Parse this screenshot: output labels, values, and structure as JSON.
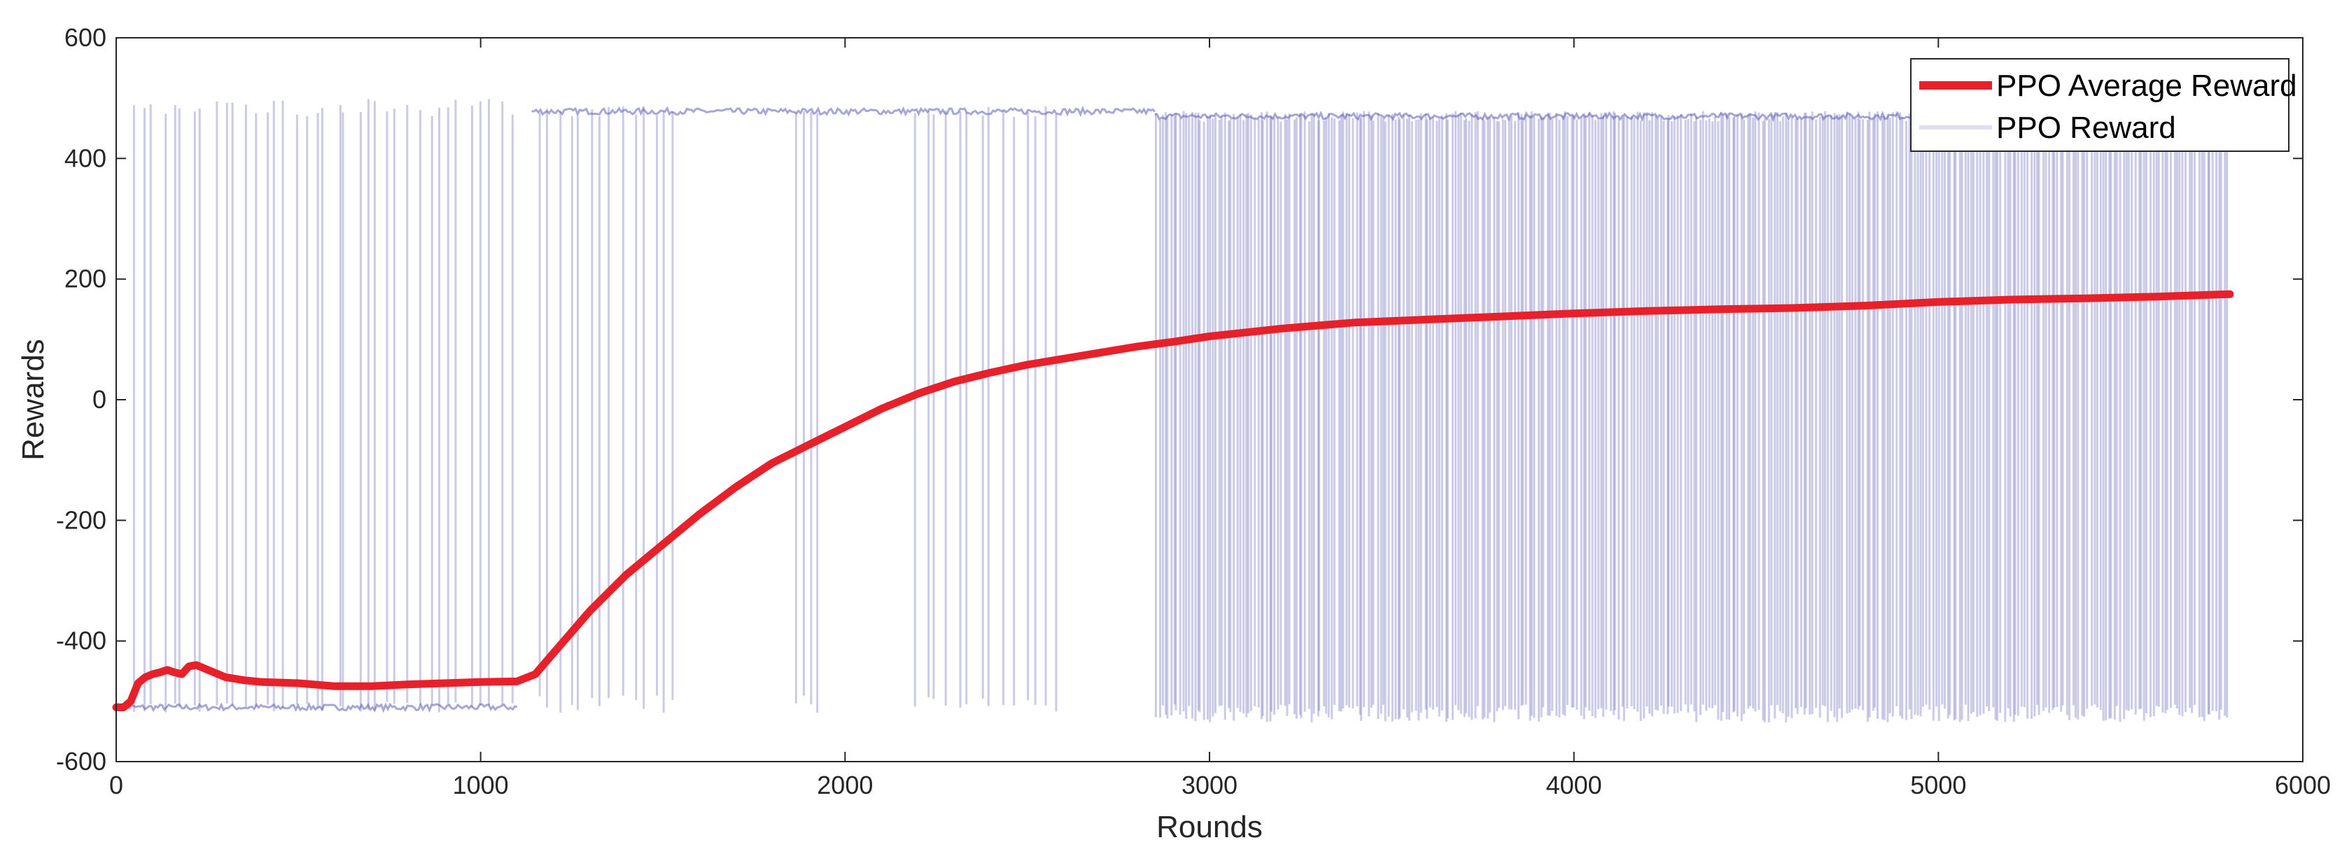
{
  "chart_data": {
    "type": "line",
    "title": "",
    "xlabel": "Rounds",
    "ylabel": "Rewards",
    "xlim": [
      0,
      6000
    ],
    "ylim": [
      -600,
      600
    ],
    "x_ticks": [
      0,
      1000,
      2000,
      3000,
      4000,
      5000,
      6000
    ],
    "y_ticks": [
      -600,
      -400,
      -200,
      0,
      200,
      400,
      600
    ],
    "x_tick_labels": [
      "0",
      "1000",
      "2000",
      "3000",
      "4000",
      "5000",
      "6000"
    ],
    "y_tick_labels": [
      "-600",
      "-400",
      "-200",
      "0",
      "200",
      "400",
      "600"
    ],
    "grid": false,
    "legend_position": "top-right",
    "legend": [
      "PPO Average Reward",
      "PPO Reward"
    ],
    "series": [
      {
        "name": "PPO Average Reward",
        "color": "#e8202a",
        "x": [
          0,
          20,
          40,
          60,
          80,
          100,
          120,
          140,
          160,
          180,
          200,
          220,
          260,
          300,
          350,
          400,
          500,
          600,
          700,
          800,
          900,
          1000,
          1100,
          1150,
          1200,
          1300,
          1400,
          1500,
          1600,
          1700,
          1800,
          1900,
          2000,
          2100,
          2200,
          2300,
          2400,
          2500,
          2600,
          2700,
          2800,
          2900,
          3000,
          3200,
          3400,
          3600,
          3800,
          4000,
          4200,
          4400,
          4600,
          4800,
          5000,
          5200,
          5400,
          5600,
          5800
        ],
        "y": [
          -510,
          -510,
          -500,
          -470,
          -460,
          -455,
          -452,
          -448,
          -452,
          -455,
          -442,
          -440,
          -450,
          -460,
          -465,
          -468,
          -470,
          -475,
          -475,
          -472,
          -470,
          -468,
          -467,
          -455,
          -420,
          -350,
          -290,
          -240,
          -190,
          -145,
          -105,
          -75,
          -45,
          -15,
          10,
          30,
          45,
          58,
          68,
          78,
          88,
          96,
          105,
          118,
          128,
          133,
          138,
          143,
          147,
          150,
          152,
          156,
          162,
          166,
          168,
          171,
          175
        ]
      },
      {
        "name": "PPO Reward",
        "color": "#5c5eb4",
        "base_segments": [
          {
            "x_start": 0,
            "x_end": 1100,
            "y": -510
          },
          {
            "x_start": 1140,
            "x_end": 2850,
            "y": 478
          },
          {
            "x_start": 2850,
            "x_end": 5800,
            "y": 470
          }
        ],
        "spike_ranges": [
          {
            "x_start": 30,
            "x_end": 1100,
            "from": -510,
            "to": 485,
            "count": 38
          },
          {
            "x_start": 1150,
            "x_end": 1550,
            "from": 478,
            "to": -505,
            "count": 14
          },
          {
            "x_start": 1850,
            "x_end": 1940,
            "from": 478,
            "to": -505,
            "count": 4
          },
          {
            "x_start": 2180,
            "x_end": 2600,
            "from": 478,
            "to": -505,
            "count": 14
          },
          {
            "x_start": 2850,
            "x_end": 5800,
            "from": 470,
            "to": -520,
            "count": 360
          }
        ]
      }
    ]
  }
}
